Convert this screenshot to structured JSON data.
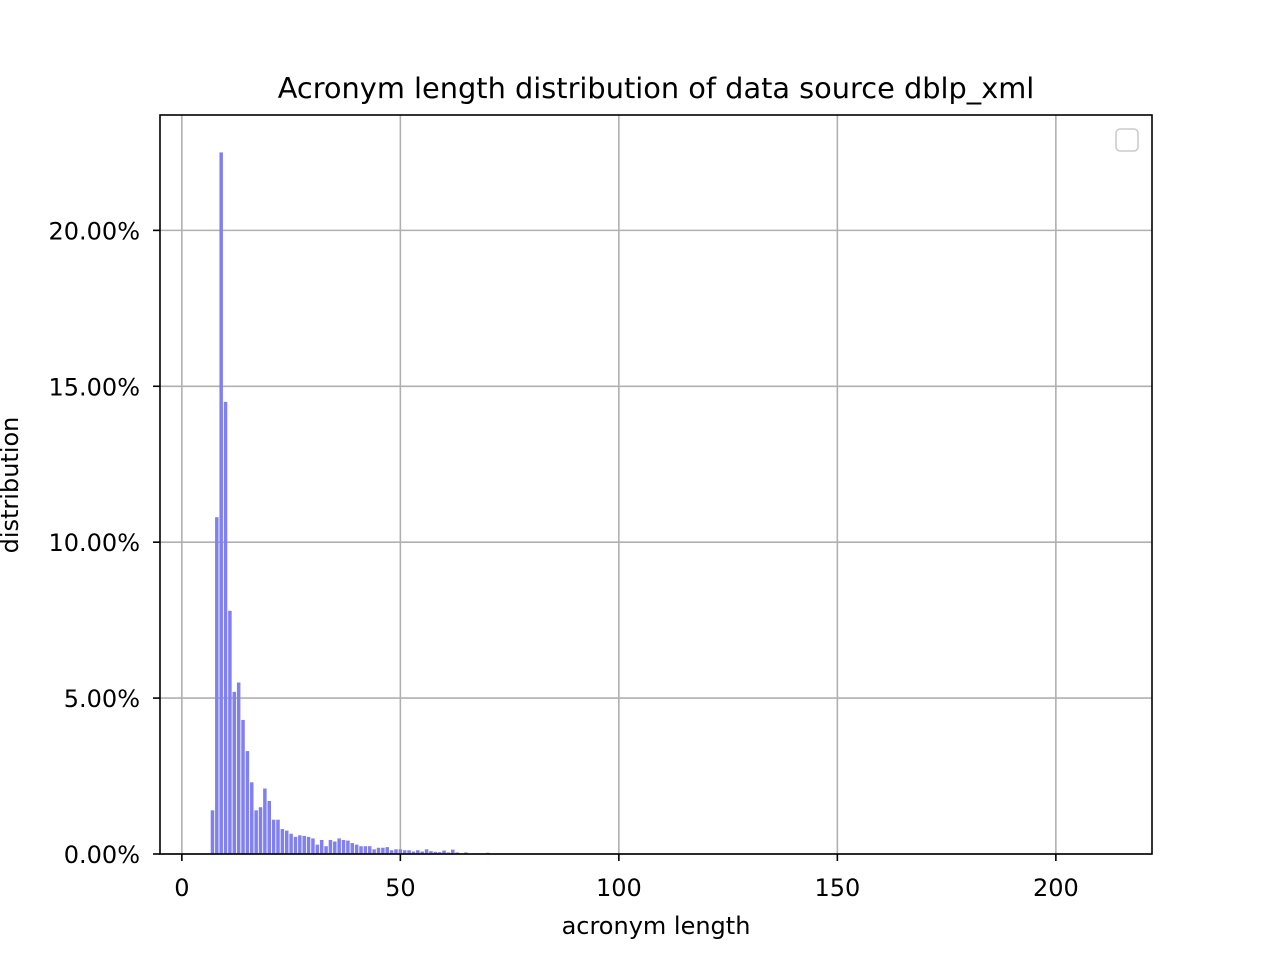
{
  "chart_data": {
    "type": "bar",
    "title": "Acronym length distribution of data source dblp_xml",
    "xlabel": "acronym length",
    "ylabel": "distribution",
    "xlim": [
      -5,
      222
    ],
    "ylim": [
      0,
      0.237
    ],
    "xticks": [
      0,
      50,
      100,
      150,
      200
    ],
    "xtick_labels": [
      "0",
      "50",
      "100",
      "150",
      "200"
    ],
    "yticks": [
      0,
      0.05,
      0.1,
      0.15,
      0.2
    ],
    "ytick_labels": [
      "0.00%",
      "5.00%",
      "10.00%",
      "15.00%",
      "20.00%"
    ],
    "grid": true,
    "legend": {
      "placement": "upper-right",
      "entries": []
    },
    "bar_color": "#8080f0",
    "x": [
      7,
      8,
      9,
      10,
      11,
      12,
      13,
      14,
      15,
      16,
      17,
      18,
      19,
      20,
      21,
      22,
      23,
      24,
      25,
      26,
      27,
      28,
      29,
      30,
      31,
      32,
      33,
      34,
      35,
      36,
      37,
      38,
      39,
      40,
      41,
      42,
      43,
      44,
      45,
      46,
      47,
      48,
      49,
      50,
      51,
      52,
      53,
      54,
      55,
      56,
      57,
      58,
      59,
      60,
      61,
      62,
      63,
      65,
      70
    ],
    "values": [
      0.014,
      0.108,
      0.225,
      0.145,
      0.078,
      0.052,
      0.055,
      0.043,
      0.033,
      0.023,
      0.014,
      0.015,
      0.021,
      0.017,
      0.011,
      0.011,
      0.008,
      0.0075,
      0.0065,
      0.0055,
      0.006,
      0.0058,
      0.0055,
      0.005,
      0.003,
      0.0045,
      0.0025,
      0.0045,
      0.004,
      0.005,
      0.0045,
      0.0043,
      0.0035,
      0.003,
      0.0025,
      0.0025,
      0.0025,
      0.0015,
      0.002,
      0.002,
      0.0022,
      0.0012,
      0.0015,
      0.0015,
      0.0012,
      0.0012,
      0.0008,
      0.0012,
      0.0008,
      0.0015,
      0.0009,
      0.0007,
      0.0006,
      0.0011,
      0.0005,
      0.0014,
      0.0005,
      0.0005,
      0.0004
    ]
  }
}
